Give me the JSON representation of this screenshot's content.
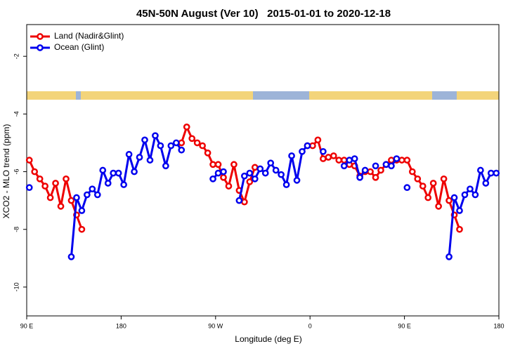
{
  "chart_data": {
    "type": "line",
    "title": "45N-50N August (Ver 10)   2015-01-01 to 2020-12-18",
    "x_label": "Longitude (deg E)",
    "y_label": "XCO2 - MLO trend (ppm)",
    "x": [
      92.5,
      97.5,
      102.5,
      107.5,
      112.5,
      117.5,
      122.5,
      127.5,
      132.5,
      137.5,
      142.5,
      147.5,
      152.5,
      157.5,
      162.5,
      167.5,
      172.5,
      177.5,
      182.5,
      187.5,
      192.5,
      197.5,
      202.5,
      207.5,
      212.5,
      217.5,
      222.5,
      227.5,
      232.5,
      237.5,
      242.5,
      247.5,
      252.5,
      257.5,
      262.5,
      267.5,
      272.5,
      277.5,
      282.5,
      287.5,
      292.5,
      297.5,
      302.5,
      307.5,
      312.5,
      317.5,
      322.5,
      327.5,
      332.5,
      337.5,
      342.5,
      347.5,
      352.5,
      357.5,
      362.5,
      367.5,
      372.5,
      377.5,
      382.5,
      387.5,
      392.5,
      397.5,
      402.5,
      407.5,
      412.5,
      417.5,
      422.5,
      427.5,
      432.5,
      437.5,
      442.5,
      447.5,
      452.5,
      457.5,
      462.5,
      467.5,
      472.5,
      477.5,
      482.5,
      487.5,
      492.5,
      497.5,
      502.5,
      507.5,
      512.5,
      517.5,
      522.5,
      527.5,
      532.5,
      537.5
    ],
    "series": [
      {
        "name": "Land (Nadir&Glint)",
        "color": "#ee0000",
        "values": [
          -5.6,
          -6.0,
          -6.25,
          -6.5,
          -6.9,
          -6.4,
          -7.2,
          -6.25,
          -7.0,
          -7.5,
          -8.0,
          null,
          null,
          null,
          null,
          null,
          null,
          null,
          null,
          null,
          null,
          null,
          null,
          null,
          null,
          null,
          null,
          null,
          null,
          -5.0,
          -4.45,
          -4.85,
          -5.0,
          -5.1,
          -5.35,
          -5.75,
          -5.75,
          -6.2,
          -6.5,
          -5.75,
          -6.65,
          -7.05,
          -6.35,
          -5.85,
          null,
          null,
          null,
          null,
          null,
          null,
          null,
          null,
          null,
          -5.1,
          -5.1,
          -4.9,
          -5.55,
          -5.5,
          -5.45,
          -5.6,
          -5.6,
          -5.75,
          -5.8,
          -6.15,
          -6.0,
          -6.0,
          -6.2,
          -5.95,
          -5.75,
          -5.6,
          -5.6,
          -5.6,
          -5.6,
          -6.0,
          -6.25,
          -6.5,
          -6.9,
          -6.4,
          -7.2,
          -6.25,
          -7.0,
          -7.5,
          -8.0,
          null,
          null,
          null,
          null,
          null,
          null,
          null
        ]
      },
      {
        "name": "Ocean (Glint)",
        "color": "#0000ee",
        "values": [
          -6.55,
          null,
          null,
          null,
          null,
          null,
          null,
          null,
          -8.95,
          -6.9,
          -7.35,
          -6.8,
          -6.6,
          -6.8,
          -5.95,
          -6.4,
          -6.05,
          -6.05,
          -6.45,
          -5.4,
          -6.0,
          -5.5,
          -4.9,
          -5.6,
          -4.75,
          -5.1,
          -5.8,
          -5.1,
          -5.0,
          -5.25,
          null,
          null,
          null,
          null,
          null,
          -6.25,
          -6.05,
          -6.0,
          null,
          null,
          -7.0,
          -6.15,
          -6.05,
          -6.25,
          -5.9,
          -6.05,
          -5.7,
          -5.95,
          -6.1,
          -6.45,
          -5.45,
          -6.3,
          -5.3,
          -5.1,
          null,
          null,
          -5.3,
          null,
          null,
          null,
          -5.8,
          -5.6,
          -5.55,
          -6.2,
          -5.95,
          null,
          -5.8,
          null,
          -5.75,
          -5.8,
          -5.55,
          null,
          -6.55,
          null,
          null,
          null,
          null,
          null,
          null,
          null,
          -8.95,
          -6.9,
          -7.35,
          -6.8,
          -6.6,
          -6.8,
          -5.95,
          -6.4,
          -6.05,
          -6.05
        ]
      }
    ],
    "xlim": [
      90,
      540
    ],
    "xticks": [
      {
        "value": 90,
        "label": "90 E"
      },
      180,
      {
        "value": 270,
        "label": "90 W"
      },
      {
        "value": 360,
        "label": "0"
      },
      {
        "value": 450,
        "label": "90 E"
      },
      {
        "value": 540,
        "label": "180"
      }
    ],
    "ylim": [
      -11,
      -0.9
    ],
    "yticks": [
      -2,
      -4,
      -6,
      -8,
      -10
    ],
    "legend": "top-left"
  }
}
